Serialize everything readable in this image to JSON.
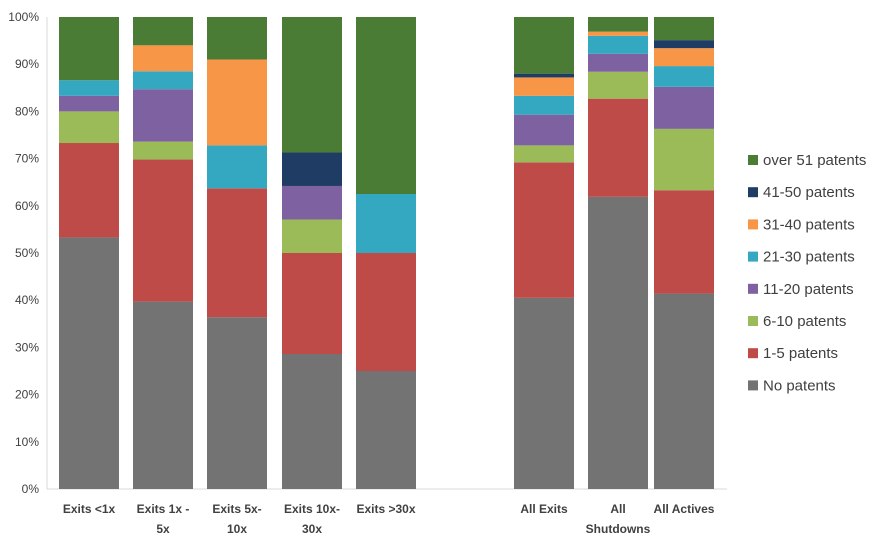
{
  "chart_data": {
    "type": "bar",
    "stacked": true,
    "percent_scale": true,
    "ylim": [
      0,
      100
    ],
    "yticks": [
      0,
      10,
      20,
      30,
      40,
      50,
      60,
      70,
      80,
      90,
      100
    ],
    "ytick_suffix": "%",
    "grid": false,
    "legend_position": "right",
    "categories": [
      [
        "Exits <1x"
      ],
      [
        "Exits 1x -",
        "5x"
      ],
      [
        "Exits 5x-",
        "10x"
      ],
      [
        "Exits 10x-",
        "30x"
      ],
      [
        "Exits >30x"
      ],
      [
        ""
      ],
      [
        "All Exits"
      ],
      [
        "All",
        "Shutdowns"
      ],
      [
        "All Actives"
      ]
    ],
    "series": [
      {
        "name": "No patents",
        "color": "#737373",
        "values": [
          53.3,
          39.7,
          36.4,
          28.6,
          25.0,
          null,
          40.5,
          61.9,
          41.4
        ]
      },
      {
        "name": "1-5 patents",
        "color": "#BE4B48",
        "values": [
          20.0,
          30.1,
          27.3,
          21.4,
          25.0,
          null,
          28.7,
          20.8,
          21.9
        ]
      },
      {
        "name": "6-10 patents",
        "color": "#9BBB59",
        "values": [
          6.7,
          3.8,
          0,
          7.1,
          0,
          null,
          3.6,
          5.7,
          13.0
        ]
      },
      {
        "name": "11-20 patents",
        "color": "#7E61A1",
        "values": [
          3.3,
          11.1,
          0,
          7.1,
          0,
          null,
          6.5,
          3.8,
          8.9
        ]
      },
      {
        "name": "21-30 patents",
        "color": "#34A7C1",
        "values": [
          3.3,
          3.8,
          9.1,
          0,
          12.5,
          null,
          4.0,
          3.8,
          4.4
        ]
      },
      {
        "name": "31-40 patents",
        "color": "#F79646",
        "values": [
          0,
          5.5,
          18.2,
          0,
          0,
          null,
          3.9,
          0.9,
          3.8
        ]
      },
      {
        "name": "41-50 patents",
        "color": "#1F3C64",
        "values": [
          0,
          0,
          0,
          7.1,
          0,
          null,
          0.8,
          0,
          1.7
        ]
      },
      {
        "name": "over 51 patents",
        "color": "#4A7C35",
        "values": [
          13.4,
          6.0,
          9.0,
          28.7,
          37.5,
          null,
          12.0,
          3.1,
          4.9
        ]
      }
    ]
  }
}
